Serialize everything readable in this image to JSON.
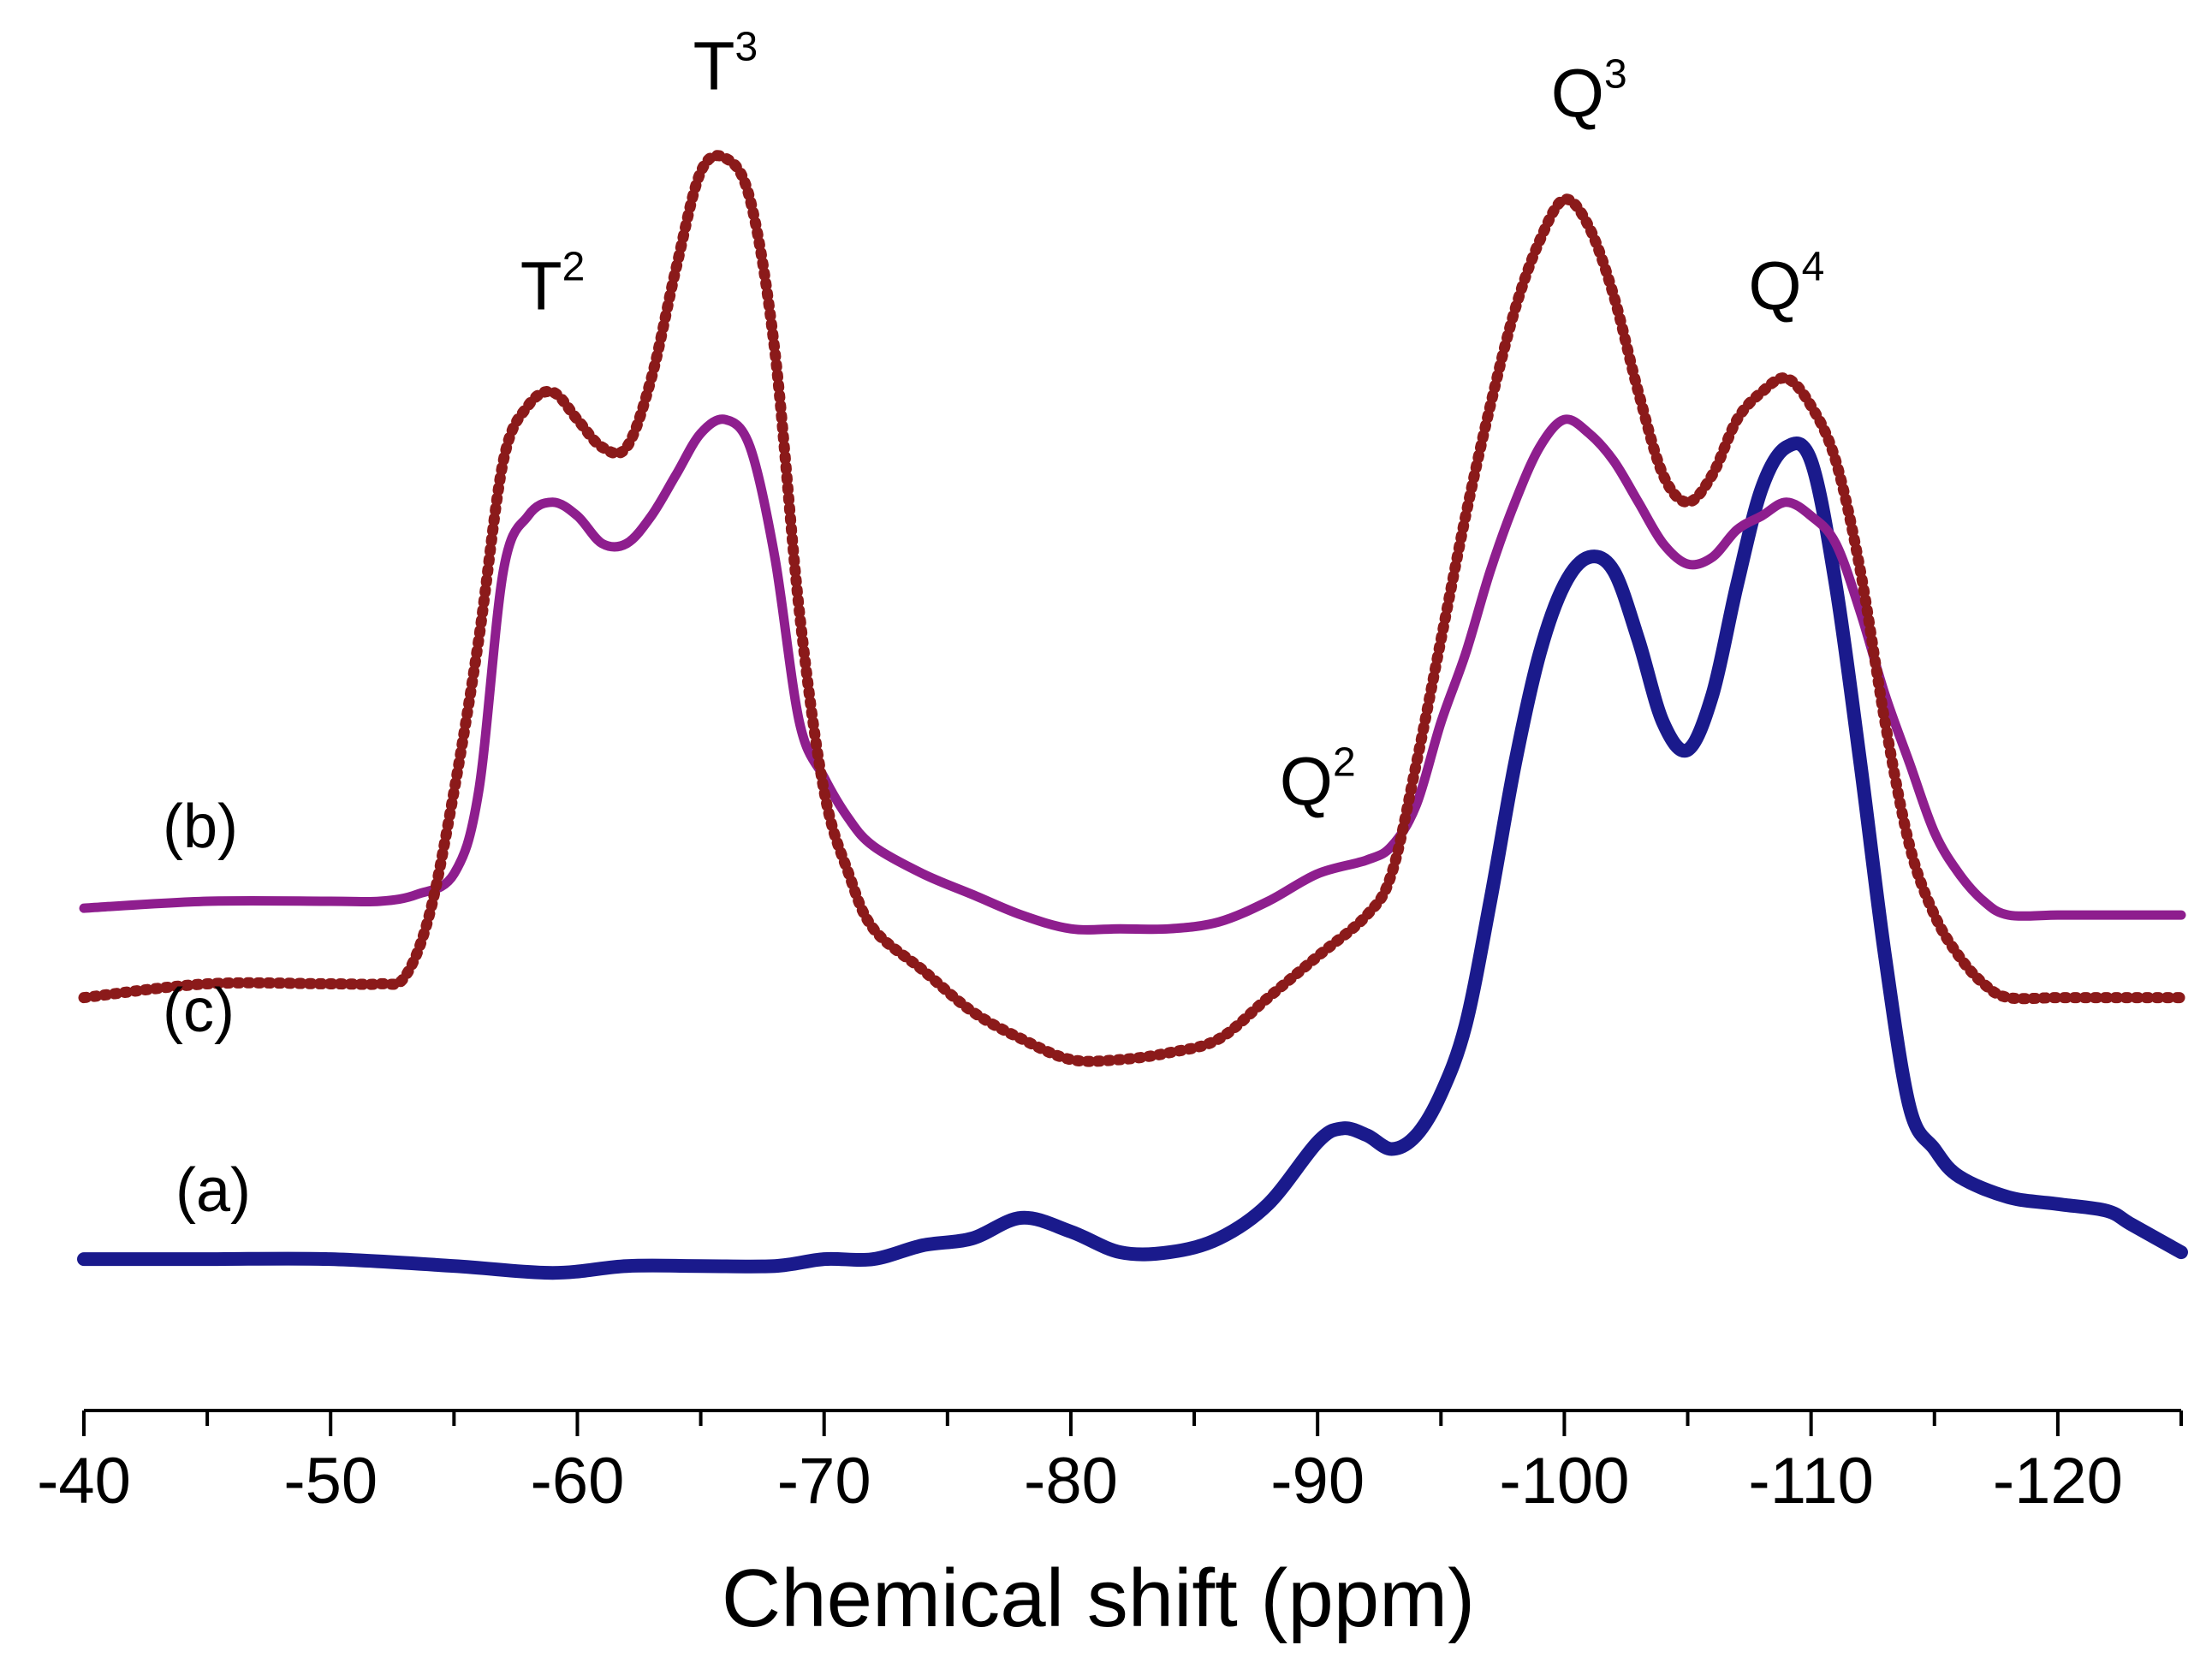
{
  "chart_data": {
    "type": "line",
    "title": "",
    "xlabel": "Chemical shift (ppm)",
    "ylabel": "",
    "xlim": [
      -40,
      -125
    ],
    "x_reversed": true,
    "ylim": [
      0,
      1
    ],
    "grid": false,
    "xticks": [
      {
        "value": -40,
        "label": "-40"
      },
      {
        "value": -50,
        "label": "-50"
      },
      {
        "value": -60,
        "label": "-60"
      },
      {
        "value": -70,
        "label": "-70"
      },
      {
        "value": -80,
        "label": "-80"
      },
      {
        "value": -90,
        "label": "-90"
      },
      {
        "value": -100,
        "label": "-100"
      },
      {
        "value": -110,
        "label": "-110"
      },
      {
        "value": -120,
        "label": "-120"
      }
    ],
    "series": [
      {
        "name": "(a)",
        "color": "#1a1a8c",
        "points": [
          [
            -40,
            0.11
          ],
          [
            -45,
            0.11
          ],
          [
            -50,
            0.11
          ],
          [
            -55,
            0.105
          ],
          [
            -59,
            0.1
          ],
          [
            -62,
            0.105
          ],
          [
            -65,
            0.105
          ],
          [
            -68,
            0.105
          ],
          [
            -70,
            0.11
          ],
          [
            -72,
            0.11
          ],
          [
            -74,
            0.12
          ],
          [
            -76,
            0.125
          ],
          [
            -78,
            0.14
          ],
          [
            -80,
            0.13
          ],
          [
            -82,
            0.115
          ],
          [
            -84,
            0.115
          ],
          [
            -86,
            0.125
          ],
          [
            -88,
            0.15
          ],
          [
            -90,
            0.195
          ],
          [
            -91,
            0.205
          ],
          [
            -92,
            0.2
          ],
          [
            -93,
            0.19
          ],
          [
            -94,
            0.2
          ],
          [
            -95,
            0.23
          ],
          [
            -96,
            0.28
          ],
          [
            -97,
            0.37
          ],
          [
            -98,
            0.47
          ],
          [
            -99,
            0.55
          ],
          [
            -100,
            0.6
          ],
          [
            -101,
            0.62
          ],
          [
            -102,
            0.61
          ],
          [
            -103,
            0.56
          ],
          [
            -104,
            0.5
          ],
          [
            -105,
            0.48
          ],
          [
            -106,
            0.52
          ],
          [
            -107,
            0.6
          ],
          [
            -108,
            0.67
          ],
          [
            -109,
            0.7
          ],
          [
            -110,
            0.69
          ],
          [
            -111,
            0.6
          ],
          [
            -112,
            0.47
          ],
          [
            -113,
            0.33
          ],
          [
            -114,
            0.22
          ],
          [
            -115,
            0.19
          ],
          [
            -116,
            0.17
          ],
          [
            -118,
            0.155
          ],
          [
            -120,
            0.15
          ],
          [
            -122,
            0.145
          ],
          [
            -123,
            0.135
          ],
          [
            -125,
            0.115
          ]
        ]
      },
      {
        "name": "(b)",
        "color": "#8e1e8e",
        "points": [
          [
            -40,
            0.365
          ],
          [
            -45,
            0.37
          ],
          [
            -50,
            0.37
          ],
          [
            -52,
            0.37
          ],
          [
            -53.5,
            0.375
          ],
          [
            -55,
            0.39
          ],
          [
            -56,
            0.45
          ],
          [
            -57,
            0.61
          ],
          [
            -58,
            0.65
          ],
          [
            -59,
            0.66
          ],
          [
            -60,
            0.65
          ],
          [
            -61,
            0.63
          ],
          [
            -62,
            0.63
          ],
          [
            -63,
            0.65
          ],
          [
            -64,
            0.68
          ],
          [
            -65,
            0.71
          ],
          [
            -66,
            0.72
          ],
          [
            -67,
            0.7
          ],
          [
            -68,
            0.62
          ],
          [
            -69,
            0.5
          ],
          [
            -70,
            0.46
          ],
          [
            -71,
            0.43
          ],
          [
            -72,
            0.41
          ],
          [
            -74,
            0.39
          ],
          [
            -76,
            0.375
          ],
          [
            -78,
            0.36
          ],
          [
            -80,
            0.35
          ],
          [
            -82,
            0.35
          ],
          [
            -84,
            0.35
          ],
          [
            -86,
            0.355
          ],
          [
            -88,
            0.37
          ],
          [
            -90,
            0.39
          ],
          [
            -92,
            0.4
          ],
          [
            -93,
            0.41
          ],
          [
            -94,
            0.44
          ],
          [
            -95,
            0.5
          ],
          [
            -96,
            0.55
          ],
          [
            -97,
            0.61
          ],
          [
            -98,
            0.66
          ],
          [
            -99,
            0.7
          ],
          [
            -100,
            0.72
          ],
          [
            -101,
            0.71
          ],
          [
            -102,
            0.69
          ],
          [
            -103,
            0.66
          ],
          [
            -104,
            0.63
          ],
          [
            -105,
            0.615
          ],
          [
            -106,
            0.62
          ],
          [
            -107,
            0.64
          ],
          [
            -108,
            0.65
          ],
          [
            -109,
            0.66
          ],
          [
            -110,
            0.65
          ],
          [
            -111,
            0.63
          ],
          [
            -112,
            0.58
          ],
          [
            -113,
            0.52
          ],
          [
            -114,
            0.47
          ],
          [
            -115,
            0.42
          ],
          [
            -116,
            0.39
          ],
          [
            -117,
            0.37
          ],
          [
            -118,
            0.36
          ],
          [
            -120,
            0.36
          ],
          [
            -122,
            0.36
          ],
          [
            -125,
            0.36
          ]
        ]
      },
      {
        "name": "(c)",
        "color": "#8b1a1a",
        "points": [
          [
            -40,
            0.3
          ],
          [
            -45,
            0.31
          ],
          [
            -50,
            0.31
          ],
          [
            -52,
            0.31
          ],
          [
            -53,
            0.315
          ],
          [
            -54,
            0.36
          ],
          [
            -55,
            0.45
          ],
          [
            -56,
            0.56
          ],
          [
            -57,
            0.69
          ],
          [
            -58,
            0.73
          ],
          [
            -59,
            0.74
          ],
          [
            -60,
            0.72
          ],
          [
            -61,
            0.7
          ],
          [
            -62,
            0.7
          ],
          [
            -63,
            0.75
          ],
          [
            -64,
            0.83
          ],
          [
            -65,
            0.9
          ],
          [
            -66,
            0.91
          ],
          [
            -67,
            0.88
          ],
          [
            -68,
            0.77
          ],
          [
            -69,
            0.58
          ],
          [
            -70,
            0.45
          ],
          [
            -71,
            0.39
          ],
          [
            -72,
            0.35
          ],
          [
            -74,
            0.32
          ],
          [
            -76,
            0.29
          ],
          [
            -78,
            0.27
          ],
          [
            -80,
            0.255
          ],
          [
            -82,
            0.255
          ],
          [
            -84,
            0.26
          ],
          [
            -86,
            0.27
          ],
          [
            -88,
            0.3
          ],
          [
            -90,
            0.33
          ],
          [
            -92,
            0.36
          ],
          [
            -93,
            0.39
          ],
          [
            -94,
            0.47
          ],
          [
            -95,
            0.56
          ],
          [
            -96,
            0.65
          ],
          [
            -97,
            0.73
          ],
          [
            -98,
            0.8
          ],
          [
            -99,
            0.85
          ],
          [
            -100,
            0.88
          ],
          [
            -101,
            0.86
          ],
          [
            -102,
            0.81
          ],
          [
            -103,
            0.74
          ],
          [
            -104,
            0.68
          ],
          [
            -105,
            0.66
          ],
          [
            -106,
            0.68
          ],
          [
            -107,
            0.72
          ],
          [
            -108,
            0.74
          ],
          [
            -109,
            0.75
          ],
          [
            -110,
            0.73
          ],
          [
            -111,
            0.69
          ],
          [
            -112,
            0.61
          ],
          [
            -113,
            0.5
          ],
          [
            -114,
            0.41
          ],
          [
            -115,
            0.36
          ],
          [
            -116,
            0.33
          ],
          [
            -117,
            0.31
          ],
          [
            -118,
            0.3
          ],
          [
            -120,
            0.3
          ],
          [
            -122,
            0.3
          ],
          [
            -125,
            0.3
          ]
        ]
      }
    ],
    "curve_labels": [
      {
        "series": "(b)",
        "text": "(b)"
      },
      {
        "series": "(c)",
        "text": "(c)"
      },
      {
        "series": "(a)",
        "text": "(a)"
      }
    ],
    "annotations": [
      {
        "base": "T",
        "sup": "2",
        "x": -59,
        "y": 0.8
      },
      {
        "base": "T",
        "sup": "3",
        "x": -66,
        "y": 0.96
      },
      {
        "base": "Q",
        "sup": "2",
        "x": -90,
        "y": 0.44
      },
      {
        "base": "Q",
        "sup": "3",
        "x": -101,
        "y": 0.94
      },
      {
        "base": "Q",
        "sup": "4",
        "x": -109,
        "y": 0.8
      }
    ]
  }
}
